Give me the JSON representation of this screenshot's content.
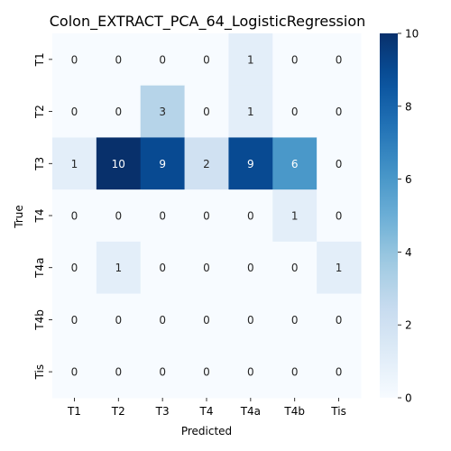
{
  "chart_data": {
    "type": "heatmap",
    "title": "Colon_EXTRACT_PCA_64_LogisticRegression",
    "xlabel": "Predicted",
    "ylabel": "True",
    "x_categories": [
      "T1",
      "T2",
      "T3",
      "T4",
      "T4a",
      "T4b",
      "Tis"
    ],
    "y_categories": [
      "T1",
      "T2",
      "T3",
      "T4",
      "T4a",
      "T4b",
      "Tis"
    ],
    "values": [
      [
        0,
        0,
        0,
        0,
        1,
        0,
        0
      ],
      [
        0,
        0,
        3,
        0,
        1,
        0,
        0
      ],
      [
        1,
        10,
        9,
        2,
        9,
        6,
        0
      ],
      [
        0,
        0,
        0,
        0,
        0,
        1,
        0
      ],
      [
        0,
        1,
        0,
        0,
        0,
        0,
        1
      ],
      [
        0,
        0,
        0,
        0,
        0,
        0,
        0
      ],
      [
        0,
        0,
        0,
        0,
        0,
        0,
        0
      ]
    ],
    "colorbar": {
      "range": [
        0,
        10
      ],
      "ticks": [
        0,
        2,
        4,
        6,
        8,
        10
      ],
      "colormap": "Blues"
    }
  }
}
